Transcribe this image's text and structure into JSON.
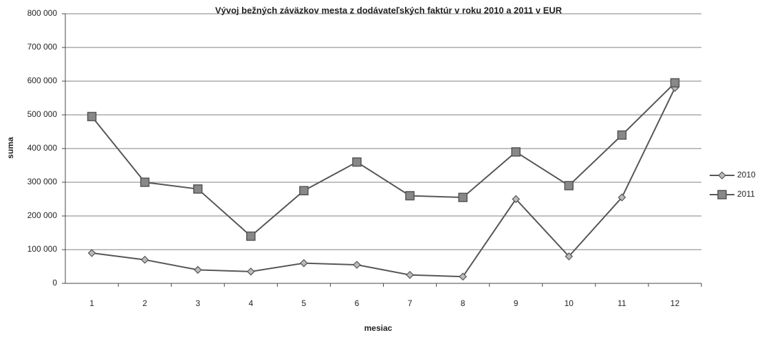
{
  "chart_data": {
    "type": "line",
    "title": "Vývoj  bežných záväzkov mesta  z dodávateľských faktúr v roku 2010 a 2011 v EUR",
    "x_label": "mesiac",
    "y_label": "suma",
    "categories": [
      "1",
      "2",
      "3",
      "4",
      "5",
      "6",
      "7",
      "8",
      "9",
      "10",
      "11",
      "12"
    ],
    "series": [
      {
        "name": "2010",
        "color": "#555555",
        "marker": "diamond",
        "values": [
          90000,
          70000,
          40000,
          35000,
          60000,
          55000,
          25000,
          20000,
          250000,
          80000,
          255000,
          580000
        ]
      },
      {
        "name": "2011",
        "color": "#555555",
        "marker": "square",
        "values": [
          495000,
          300000,
          280000,
          140000,
          275000,
          360000,
          260000,
          255000,
          390000,
          290000,
          440000,
          595000
        ]
      }
    ],
    "ylim": [
      0,
      800000
    ],
    "yticks": [
      0,
      {
        "value": 100000,
        "label": "100 000"
      },
      {
        "value": 200000,
        "label": "200 000"
      },
      {
        "value": 300000,
        "label": "300 000"
      },
      {
        "value": 400000,
        "label": "400 000"
      },
      {
        "value": 500000,
        "label": "500 000"
      },
      {
        "value": 600000,
        "label": "600 000"
      },
      {
        "value": 700000,
        "label": "700 000"
      },
      {
        "value": 800000,
        "label": "800 000"
      }
    ],
    "grid": true,
    "legend": "right"
  }
}
